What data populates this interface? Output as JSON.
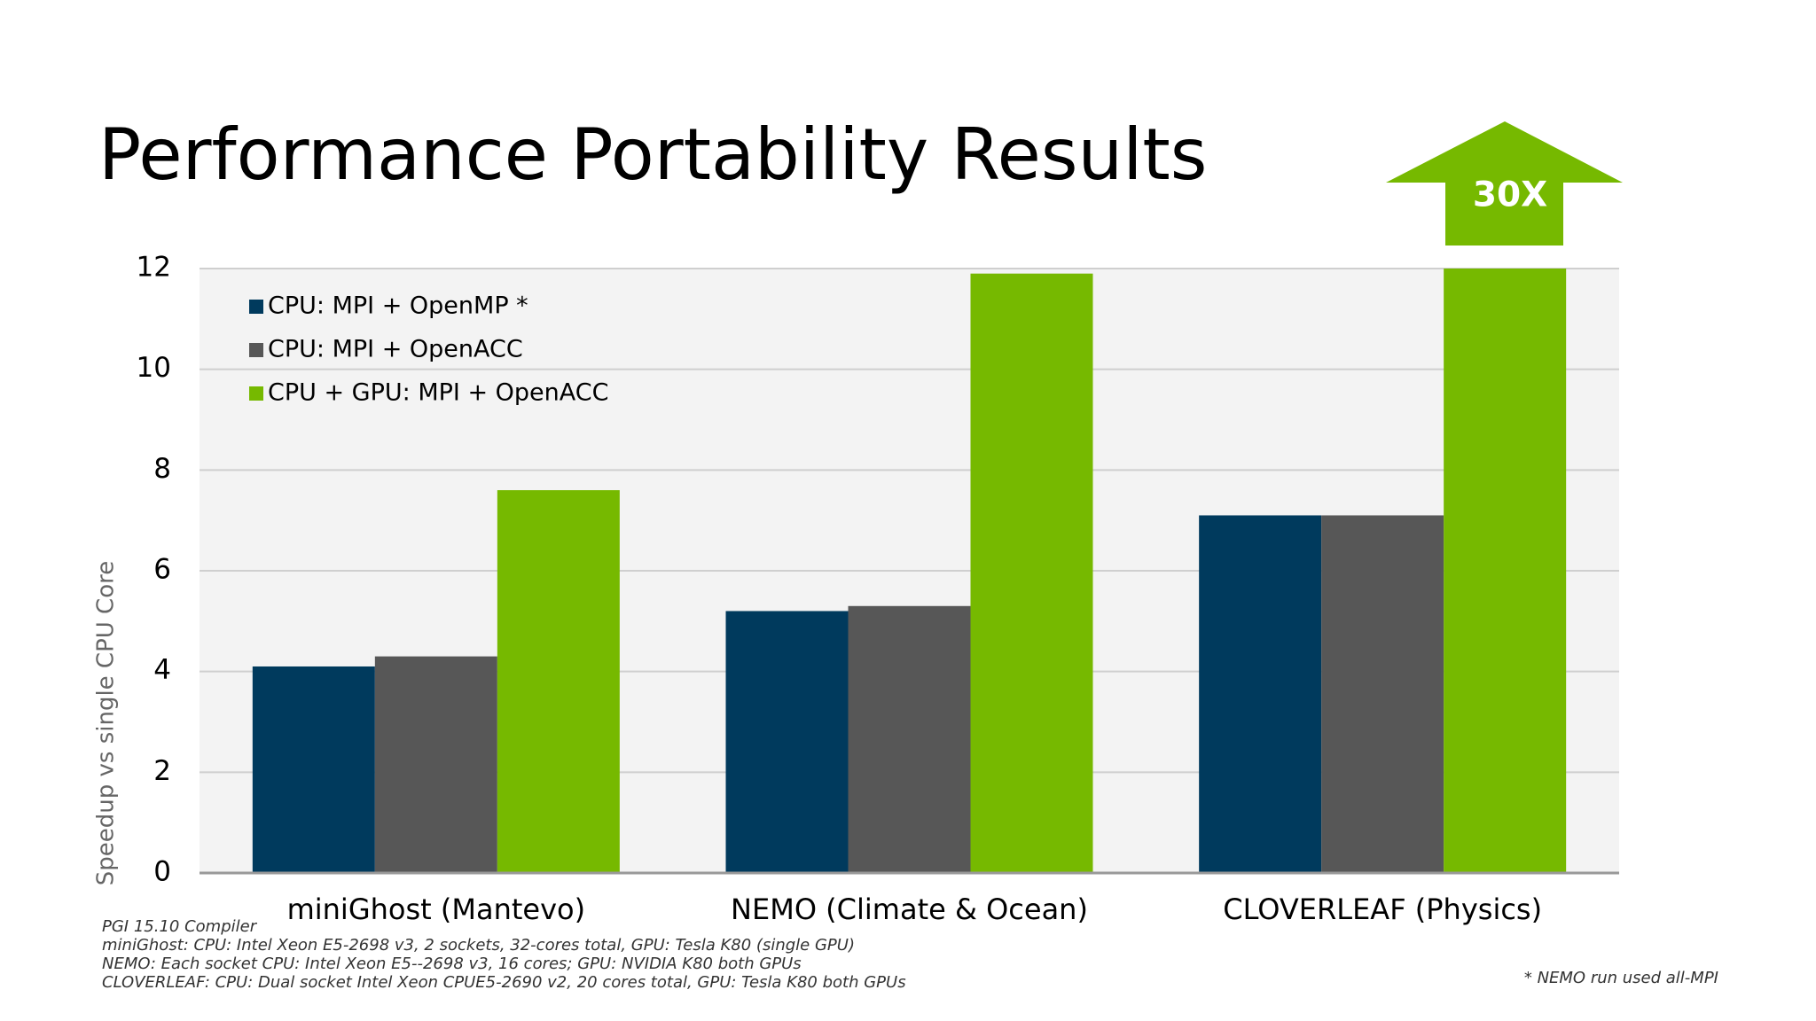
{
  "chart_data": {
    "type": "bar",
    "title": "Performance Portability Results",
    "y_label": "Speedup vs single CPU Core",
    "categories": [
      "miniGhost (Mantevo)",
      "NEMO (Climate & Ocean)",
      "CLOVERLEAF (Physics)"
    ],
    "series": [
      {
        "name": "CPU: MPI + OpenMP *",
        "color": "#003a5d",
        "values": [
          4.1,
          5.2,
          7.1
        ]
      },
      {
        "name": "CPU: MPI + OpenACC",
        "color": "#575757",
        "values": [
          4.3,
          5.3,
          7.1
        ]
      },
      {
        "name": "CPU + GPU: MPI + OpenACC",
        "color": "#76b900",
        "values": [
          7.6,
          11.9,
          30
        ],
        "value_labels": [
          null,
          null,
          "30X"
        ]
      }
    ],
    "ylim": [
      0,
      12
    ],
    "yticks": [
      0,
      2,
      4,
      6,
      8,
      10,
      12
    ],
    "grid": true,
    "legend": "upper left",
    "footnotes": [
      "PGI 15.10 Compiler",
      "miniGhost: CPU: Intel Xeon E5-2698 v3, 2 sockets, 32-cores total, GPU: Tesla K80 (single GPU)",
      "NEMO: Each socket CPU: Intel Xeon E5--2698 v3, 16 cores; GPU: NVIDIA K80 both GPUs",
      "CLOVERLEAF: CPU: Dual socket Intel Xeon CPUE5-2690 v2, 20 cores total, GPU: Tesla K80 both GPUs"
    ],
    "note": "* NEMO run used all-MPI"
  }
}
